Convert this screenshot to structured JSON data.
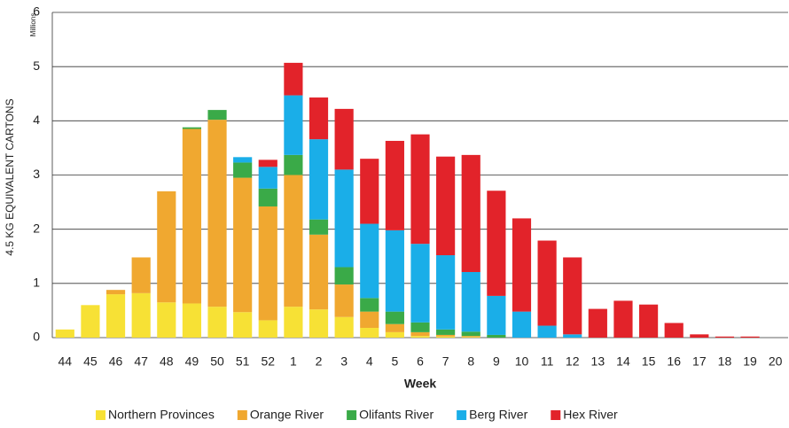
{
  "chart_data": {
    "type": "bar",
    "stacked": true,
    "y_axis_label": "4.5 KG EQUIVALENT CARTONS",
    "y_unit_label": "Millions",
    "x_axis_label": "Week",
    "categories": [
      "44",
      "45",
      "46",
      "47",
      "48",
      "49",
      "50",
      "51",
      "52",
      "1",
      "2",
      "3",
      "4",
      "5",
      "6",
      "7",
      "8",
      "9",
      "10",
      "11",
      "12",
      "13",
      "14",
      "15",
      "16",
      "17",
      "18",
      "19",
      "20"
    ],
    "series": [
      {
        "name": "Northern Provinces",
        "color": "#f7e135",
        "values": [
          0.15,
          0.6,
          0.8,
          0.82,
          0.65,
          0.63,
          0.57,
          0.47,
          0.32,
          0.57,
          0.52,
          0.38,
          0.18,
          0.1,
          0.03,
          0.02,
          0.01,
          0,
          0,
          0,
          0,
          0,
          0,
          0,
          0,
          0,
          0,
          0,
          0
        ]
      },
      {
        "name": "Orange River",
        "color": "#f0a830",
        "values": [
          0,
          0,
          0.08,
          0.66,
          2.05,
          3.22,
          3.45,
          2.48,
          2.1,
          2.43,
          1.38,
          0.6,
          0.3,
          0.15,
          0.07,
          0.03,
          0.02,
          0,
          0,
          0,
          0,
          0,
          0,
          0,
          0,
          0,
          0,
          0,
          0
        ]
      },
      {
        "name": "Olifants River",
        "color": "#3aaa48",
        "values": [
          0,
          0,
          0,
          0,
          0,
          0.03,
          0.18,
          0.28,
          0.33,
          0.37,
          0.28,
          0.32,
          0.25,
          0.23,
          0.18,
          0.1,
          0.08,
          0.05,
          0,
          0,
          0,
          0,
          0,
          0,
          0,
          0,
          0,
          0,
          0
        ]
      },
      {
        "name": "Berg River",
        "color": "#1aaee8",
        "values": [
          0,
          0,
          0,
          0,
          0,
          0,
          0,
          0.1,
          0.4,
          1.1,
          1.48,
          1.8,
          1.37,
          1.5,
          1.45,
          1.37,
          1.1,
          0.72,
          0.48,
          0.22,
          0.06,
          0,
          0,
          0,
          0,
          0,
          0,
          0,
          0
        ]
      },
      {
        "name": "Hex River",
        "color": "#e2232a",
        "values": [
          0,
          0,
          0,
          0,
          0,
          0,
          0,
          0,
          0.13,
          0.6,
          0.77,
          1.12,
          1.2,
          1.65,
          2.02,
          1.82,
          2.16,
          1.94,
          1.72,
          1.57,
          1.42,
          0.53,
          0.68,
          0.61,
          0.27,
          0.06,
          0.02,
          0.02,
          0
        ]
      }
    ],
    "ylim": [
      0,
      6
    ],
    "yticks": [
      0,
      1,
      2,
      3,
      4,
      5,
      6
    ],
    "grid": true,
    "legend": "bottom"
  }
}
